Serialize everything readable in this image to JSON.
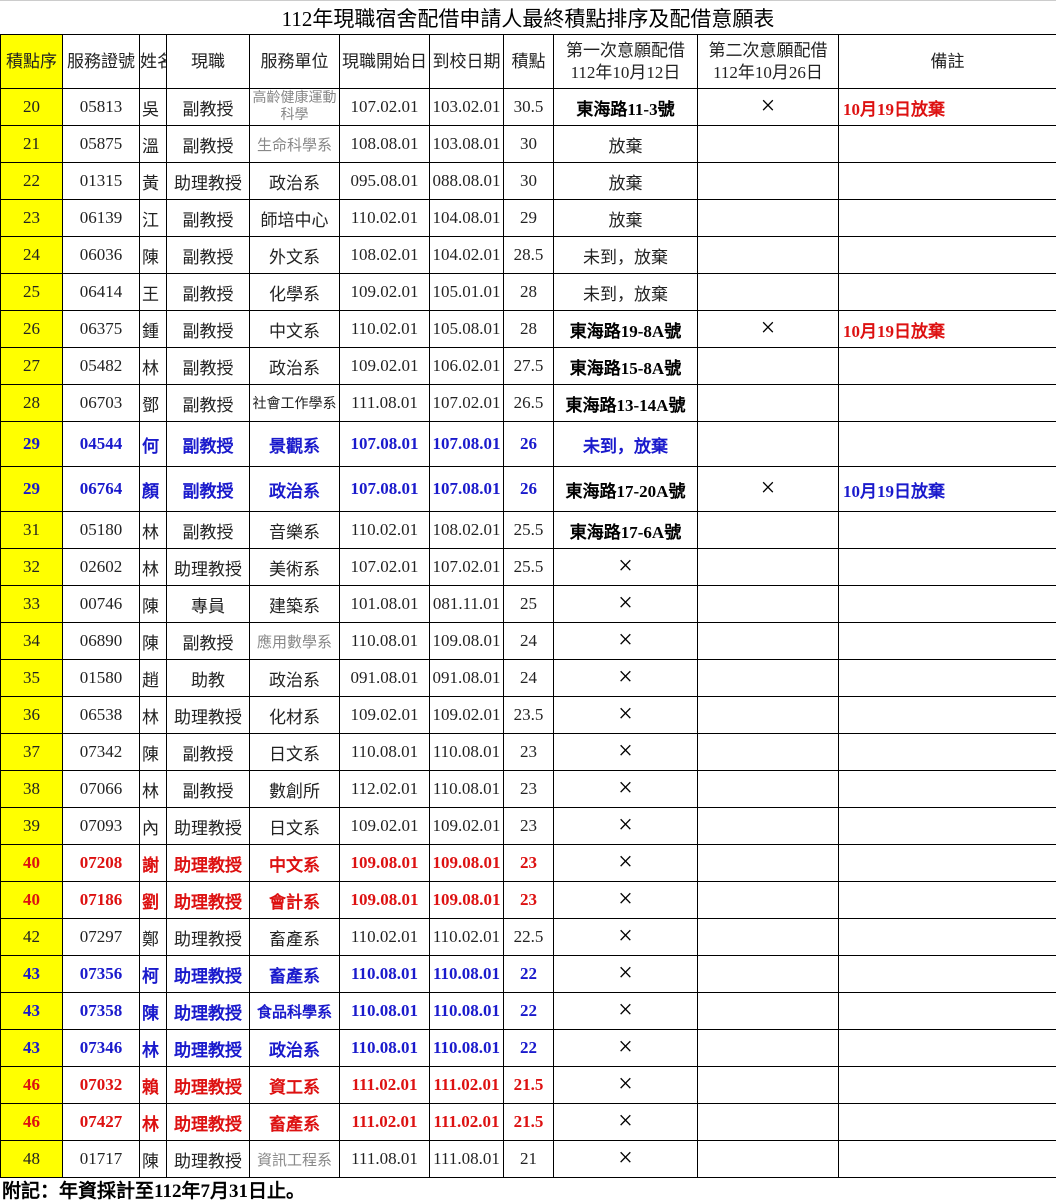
{
  "title": "112年現職宿舍配借申請人最終積點排序及配借意願表",
  "headers": [
    "積點序",
    "服務證號",
    "姓名",
    "現職",
    "服務單位",
    "現職開始日",
    "到校日期",
    "積點",
    "第一次意願配借\n112年10月12日",
    "第二次意願配借\n112年10月26日",
    "備註"
  ],
  "colors": {
    "seq_bg": "#ffff00",
    "blue": "#1a1acc",
    "red": "#dd1111"
  },
  "cross_icon": "×",
  "rows": [
    {
      "seq": "20",
      "id": "05813",
      "name": "吳",
      "title": "副教授",
      "unit": "高齡健康運動科學",
      "start": "107.02.01",
      "arrive": "103.02.01",
      "points": "30.5",
      "first": "東海路11-3號",
      "second": "×",
      "note": "10月19日放棄",
      "style": "normal"
    },
    {
      "seq": "21",
      "id": "05875",
      "name": "溫",
      "title": "副教授",
      "unit": "生命科學系",
      "start": "108.08.01",
      "arrive": "103.08.01",
      "points": "30",
      "first": "放棄",
      "second": "",
      "note": "",
      "style": "normal"
    },
    {
      "seq": "22",
      "id": "01315",
      "name": "黃",
      "title": "助理教授",
      "unit": "政治系",
      "start": "095.08.01",
      "arrive": "088.08.01",
      "points": "30",
      "first": "放棄",
      "second": "",
      "note": "",
      "style": "normal"
    },
    {
      "seq": "23",
      "id": "06139",
      "name": "江",
      "title": "副教授",
      "unit": "師培中心",
      "start": "110.02.01",
      "arrive": "104.08.01",
      "points": "29",
      "first": "放棄",
      "second": "",
      "note": "",
      "style": "normal"
    },
    {
      "seq": "24",
      "id": "06036",
      "name": "陳",
      "title": "副教授",
      "unit": "外文系",
      "start": "108.02.01",
      "arrive": "104.02.01",
      "points": "28.5",
      "first": "未到，放棄",
      "second": "",
      "note": "",
      "style": "normal"
    },
    {
      "seq": "25",
      "id": "06414",
      "name": "王",
      "title": "副教授",
      "unit": "化學系",
      "start": "109.02.01",
      "arrive": "105.01.01",
      "points": "28",
      "first": "未到，放棄",
      "second": "",
      "note": "",
      "style": "normal"
    },
    {
      "seq": "26",
      "id": "06375",
      "name": "鍾",
      "title": "副教授",
      "unit": "中文系",
      "start": "110.02.01",
      "arrive": "105.08.01",
      "points": "28",
      "first": "東海路19-8A號",
      "second": "×",
      "note": "10月19日放棄",
      "style": "normal"
    },
    {
      "seq": "27",
      "id": "05482",
      "name": "林",
      "title": "副教授",
      "unit": "政治系",
      "start": "109.02.01",
      "arrive": "106.02.01",
      "points": "27.5",
      "first": "東海路15-8A號",
      "second": "",
      "note": "",
      "style": "normal"
    },
    {
      "seq": "28",
      "id": "06703",
      "name": "鄧",
      "title": "副教授",
      "unit": "社會工作學系",
      "start": "111.08.01",
      "arrive": "107.02.01",
      "points": "26.5",
      "first": "東海路13-14A號",
      "second": "",
      "note": "",
      "style": "normal"
    },
    {
      "seq": "29",
      "id": "04544",
      "name": "何",
      "title": "副教授",
      "unit": "景觀系",
      "start": "107.08.01",
      "arrive": "107.08.01",
      "points": "26",
      "first": "未到，放棄",
      "second": "",
      "note": "",
      "style": "blue"
    },
    {
      "seq": "29",
      "id": "06764",
      "name": "顏",
      "title": "副教授",
      "unit": "政治系",
      "start": "107.08.01",
      "arrive": "107.08.01",
      "points": "26",
      "first": "東海路17-20A號",
      "second": "×",
      "note": "10月19日放棄",
      "style": "blue"
    },
    {
      "seq": "31",
      "id": "05180",
      "name": "林",
      "title": "副教授",
      "unit": "音樂系",
      "start": "110.02.01",
      "arrive": "108.02.01",
      "points": "25.5",
      "first": "東海路17-6A號",
      "second": "",
      "note": "",
      "style": "normal"
    },
    {
      "seq": "32",
      "id": "02602",
      "name": "林",
      "title": "助理教授",
      "unit": "美術系",
      "start": "107.02.01",
      "arrive": "107.02.01",
      "points": "25.5",
      "first": "×",
      "second": "",
      "note": "",
      "style": "normal"
    },
    {
      "seq": "33",
      "id": "00746",
      "name": "陳",
      "title": "專員",
      "unit": "建築系",
      "start": "101.08.01",
      "arrive": "081.11.01",
      "points": "25",
      "first": "×",
      "second": "",
      "note": "",
      "style": "normal"
    },
    {
      "seq": "34",
      "id": "06890",
      "name": "陳",
      "title": "副教授",
      "unit": "應用數學系",
      "start": "110.08.01",
      "arrive": "109.08.01",
      "points": "24",
      "first": "×",
      "second": "",
      "note": "",
      "style": "normal"
    },
    {
      "seq": "35",
      "id": "01580",
      "name": "趙",
      "title": "助教",
      "unit": "政治系",
      "start": "091.08.01",
      "arrive": "091.08.01",
      "points": "24",
      "first": "×",
      "second": "",
      "note": "",
      "style": "normal"
    },
    {
      "seq": "36",
      "id": "06538",
      "name": "林",
      "title": "助理教授",
      "unit": "化材系",
      "start": "109.02.01",
      "arrive": "109.02.01",
      "points": "23.5",
      "first": "×",
      "second": "",
      "note": "",
      "style": "normal"
    },
    {
      "seq": "37",
      "id": "07342",
      "name": "陳",
      "title": "副教授",
      "unit": "日文系",
      "start": "110.08.01",
      "arrive": "110.08.01",
      "points": "23",
      "first": "×",
      "second": "",
      "note": "",
      "style": "normal"
    },
    {
      "seq": "38",
      "id": "07066",
      "name": "林",
      "title": "副教授",
      "unit": "數創所",
      "start": "112.02.01",
      "arrive": "110.08.01",
      "points": "23",
      "first": "×",
      "second": "",
      "note": "",
      "style": "normal"
    },
    {
      "seq": "39",
      "id": "07093",
      "name": "內",
      "title": "助理教授",
      "unit": "日文系",
      "start": "109.02.01",
      "arrive": "109.02.01",
      "points": "23",
      "first": "×",
      "second": "",
      "note": "",
      "style": "normal"
    },
    {
      "seq": "40",
      "id": "07208",
      "name": "謝",
      "title": "助理教授",
      "unit": "中文系",
      "start": "109.08.01",
      "arrive": "109.08.01",
      "points": "23",
      "first": "×",
      "second": "",
      "note": "",
      "style": "red"
    },
    {
      "seq": "40",
      "id": "07186",
      "name": "劉",
      "title": "助理教授",
      "unit": "會計系",
      "start": "109.08.01",
      "arrive": "109.08.01",
      "points": "23",
      "first": "×",
      "second": "",
      "note": "",
      "style": "red"
    },
    {
      "seq": "42",
      "id": "07297",
      "name": "鄭",
      "title": "助理教授",
      "unit": "畜產系",
      "start": "110.02.01",
      "arrive": "110.02.01",
      "points": "22.5",
      "first": "×",
      "second": "",
      "note": "",
      "style": "normal"
    },
    {
      "seq": "43",
      "id": "07356",
      "name": "柯",
      "title": "助理教授",
      "unit": "畜產系",
      "start": "110.08.01",
      "arrive": "110.08.01",
      "points": "22",
      "first": "×",
      "second": "",
      "note": "",
      "style": "blue"
    },
    {
      "seq": "43",
      "id": "07358",
      "name": "陳",
      "title": "助理教授",
      "unit": "食品科學系",
      "start": "110.08.01",
      "arrive": "110.08.01",
      "points": "22",
      "first": "×",
      "second": "",
      "note": "",
      "style": "blue"
    },
    {
      "seq": "43",
      "id": "07346",
      "name": "林",
      "title": "助理教授",
      "unit": "政治系",
      "start": "110.08.01",
      "arrive": "110.08.01",
      "points": "22",
      "first": "×",
      "second": "",
      "note": "",
      "style": "blue"
    },
    {
      "seq": "46",
      "id": "07032",
      "name": "賴",
      "title": "助理教授",
      "unit": "資工系",
      "start": "111.02.01",
      "arrive": "111.02.01",
      "points": "21.5",
      "first": "×",
      "second": "",
      "note": "",
      "style": "red"
    },
    {
      "seq": "46",
      "id": "07427",
      "name": "林",
      "title": "助理教授",
      "unit": "畜產系",
      "start": "111.02.01",
      "arrive": "111.02.01",
      "points": "21.5",
      "first": "×",
      "second": "",
      "note": "",
      "style": "red"
    },
    {
      "seq": "48",
      "id": "01717",
      "name": "陳",
      "title": "助理教授",
      "unit": "資訊工程系",
      "start": "111.08.01",
      "arrive": "111.08.01",
      "points": "21",
      "first": "×",
      "second": "",
      "note": "",
      "style": "normal"
    }
  ],
  "footer": "附記：年資採計至112年7月31日止。"
}
